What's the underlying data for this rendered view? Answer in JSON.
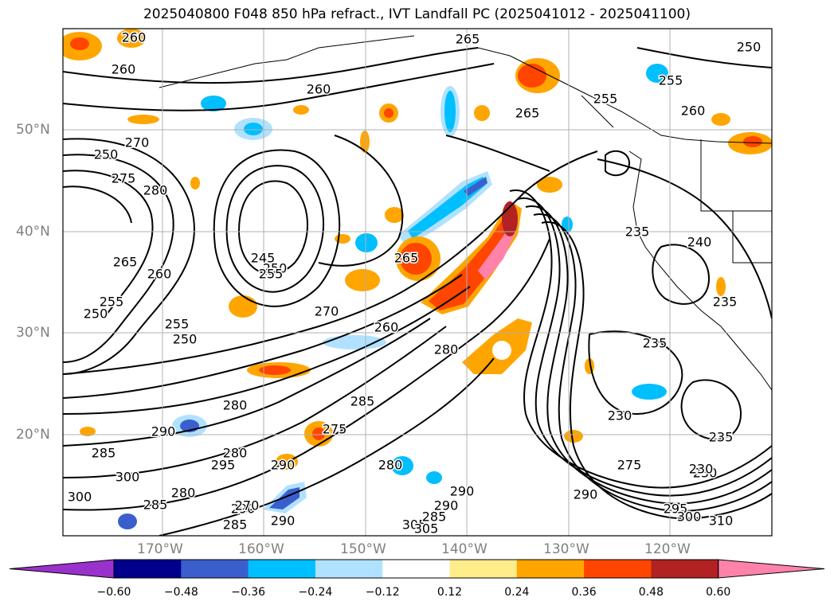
{
  "title": "2025040800 F048 850 hPa refract., IVT Landfall PC (2025041012 - 2025041100)",
  "lat_labels": [
    "50°N",
    "40°N",
    "30°N",
    "20°N"
  ],
  "lon_labels": [
    "170°W",
    "160°W",
    "150°W",
    "140°W",
    "130°W",
    "120°W"
  ],
  "colorbar": {
    "ticks": [
      "−0.60",
      "−0.48",
      "−0.36",
      "−0.24",
      "−0.12",
      "0.12",
      "0.24",
      "0.36",
      "0.48",
      "0.60"
    ],
    "colors": [
      "#9932cc",
      "#00008b",
      "#3a5fcd",
      "#00bfff",
      "#b0e2ff",
      "#ffffff",
      "#ffec8b",
      "#ffa500",
      "#ff4500",
      "#b22222",
      "#ff82ab"
    ]
  },
  "contour_labels": [
    "260",
    "260",
    "265",
    "260",
    "265",
    "255",
    "260",
    "255",
    "250",
    "270",
    "275",
    "250",
    "280",
    "265",
    "260",
    "245",
    "250",
    "255",
    "255",
    "250",
    "255",
    "250",
    "270",
    "260",
    "280",
    "265",
    "240",
    "235",
    "235",
    "235",
    "230",
    "230",
    "280",
    "290",
    "285",
    "290",
    "275",
    "280",
    "285",
    "290",
    "285",
    "280",
    "270",
    "290",
    "300",
    "295",
    "290",
    "285",
    "305",
    "305",
    "290",
    "295",
    "300",
    "310",
    "275",
    "230",
    "300",
    "280",
    "285",
    "290",
    "235"
  ]
}
